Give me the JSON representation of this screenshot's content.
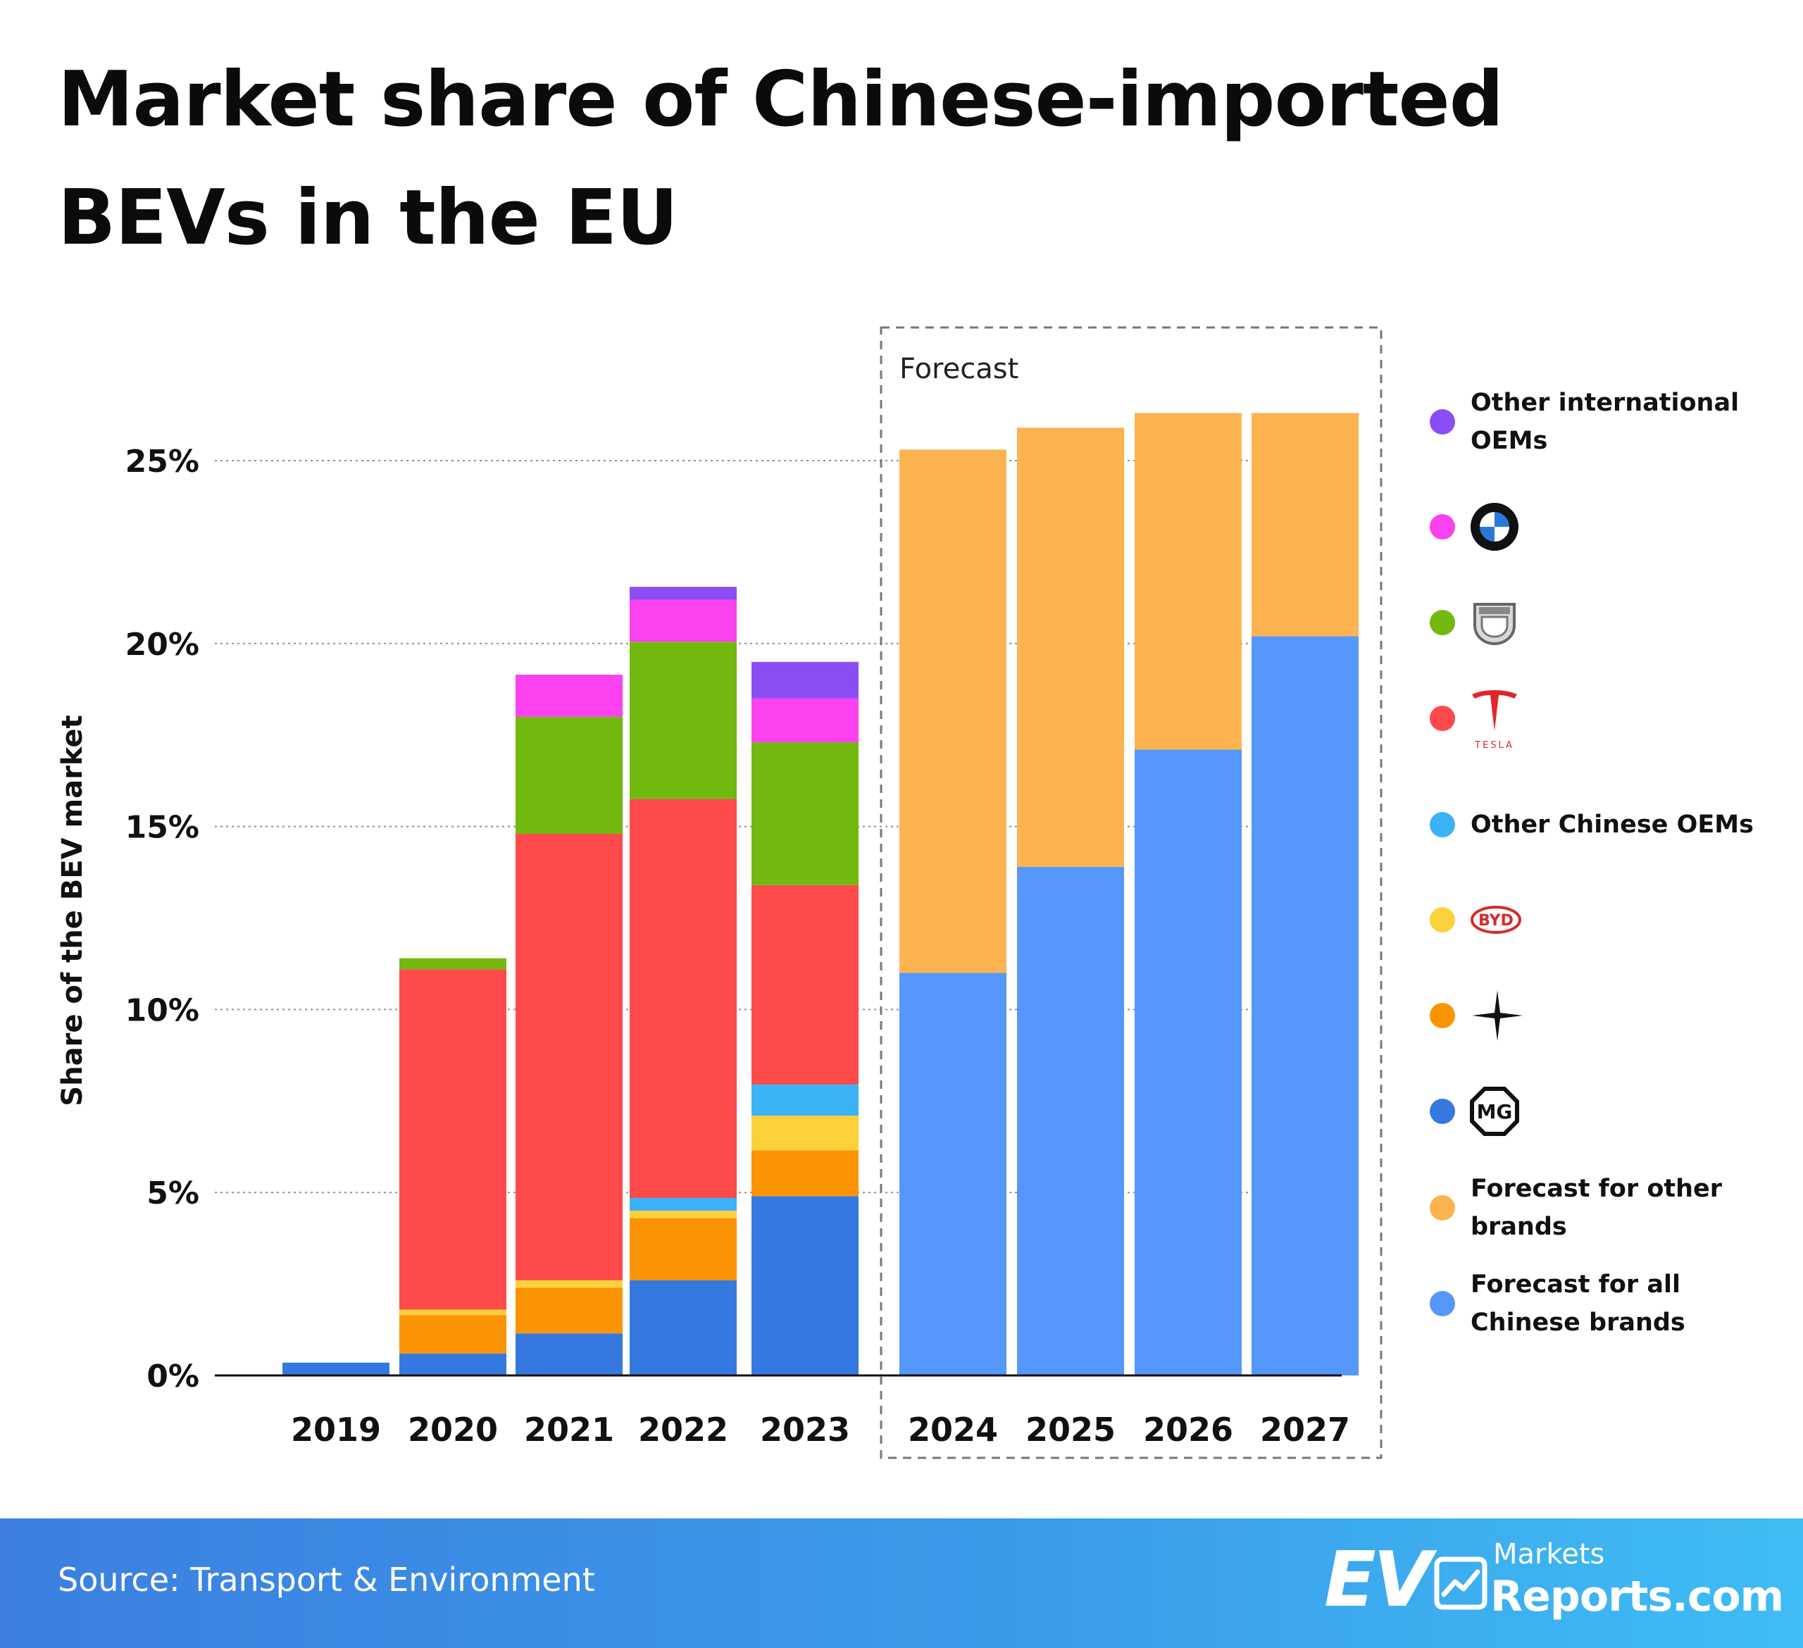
{
  "title": "Market share of Chinese-imported BEVs in the EU",
  "source": "Source: Transport & Environment",
  "brand": {
    "ev": "EV",
    "markets": "Markets",
    "reports": "Reports.com"
  },
  "chart_data": {
    "type": "bar",
    "stacked": true,
    "title": "Market share of Chinese-imported BEVs in the EU",
    "ylabel": "Share of the BEV market",
    "xlabel": "",
    "ylim": [
      0,
      25
    ],
    "yticks": [
      0,
      5,
      10,
      15,
      20,
      25
    ],
    "ytick_labels": [
      "0%",
      "5%",
      "10%",
      "15%",
      "20%",
      "25%"
    ],
    "grid": "horizontal dotted",
    "legend_position": "right",
    "categories": [
      "2019",
      "2020",
      "2021",
      "2022",
      "2023",
      "2024",
      "2025",
      "2026",
      "2027"
    ],
    "forecast_label": "Forecast",
    "forecast_categories": [
      "2024",
      "2025",
      "2026",
      "2027"
    ],
    "series": [
      {
        "name": "MG",
        "color": "#3579e0",
        "values": [
          0.35,
          0.6,
          1.15,
          2.6,
          4.9,
          0,
          0,
          0,
          0
        ]
      },
      {
        "name": "Polestar",
        "color": "#fb9404",
        "values": [
          0,
          1.05,
          1.25,
          1.7,
          1.25,
          0,
          0,
          0,
          0
        ]
      },
      {
        "name": "BYD",
        "color": "#fdd13c",
        "values": [
          0,
          0.15,
          0.2,
          0.2,
          0.95,
          0,
          0,
          0,
          0
        ]
      },
      {
        "name": "Other Chinese OEMs",
        "color": "#3bb2f6",
        "values": [
          0,
          0,
          0,
          0.35,
          0.85,
          0,
          0,
          0,
          0
        ]
      },
      {
        "name": "Tesla",
        "color": "#fe4a4b",
        "values": [
          0,
          9.3,
          12.2,
          10.9,
          5.45,
          0,
          0,
          0,
          0
        ]
      },
      {
        "name": "Dacia",
        "color": "#71b90f",
        "values": [
          0,
          0.3,
          3.2,
          4.3,
          3.9,
          0,
          0,
          0,
          0
        ]
      },
      {
        "name": "BMW",
        "color": "#fc41ee",
        "values": [
          0,
          0,
          1.15,
          1.15,
          1.2,
          0,
          0,
          0,
          0
        ]
      },
      {
        "name": "Other international OEMs",
        "color": "#8b4ef5",
        "values": [
          0,
          0,
          0,
          0.35,
          1.0,
          0,
          0,
          0,
          0
        ]
      },
      {
        "name": "Forecast for all Chinese brands",
        "color": "#5597fa",
        "values": [
          0,
          0,
          0,
          0,
          0,
          11.0,
          13.9,
          17.1,
          20.2
        ]
      },
      {
        "name": "Forecast for other brands",
        "color": "#fdb350",
        "values": [
          0,
          0,
          0,
          0,
          0,
          14.3,
          12.0,
          9.2,
          6.1
        ]
      }
    ]
  },
  "legend": [
    {
      "kind": "text",
      "label": "Other international OEMs",
      "color": "#8b4ef5"
    },
    {
      "kind": "logo",
      "icon": "bmw-logo-icon",
      "color": "#fc41ee"
    },
    {
      "kind": "logo",
      "icon": "dacia-logo-icon",
      "color": "#71b90f"
    },
    {
      "kind": "logo",
      "icon": "tesla-logo-icon",
      "color": "#fe4a4b",
      "logo_text": "TESLA"
    },
    {
      "kind": "text",
      "label": "Other Chinese OEMs",
      "color": "#3bb2f6"
    },
    {
      "kind": "logo",
      "icon": "byd-logo-icon",
      "color": "#fdd13c",
      "logo_text": "BYD"
    },
    {
      "kind": "logo",
      "icon": "polestar-logo-icon",
      "color": "#fb9404"
    },
    {
      "kind": "logo",
      "icon": "mg-logo-icon",
      "color": "#3579e0",
      "logo_text": "MG"
    },
    {
      "kind": "text",
      "label": "Forecast for other brands",
      "color": "#fdb350"
    },
    {
      "kind": "text",
      "label": "Forecast for all Chinese brands",
      "color": "#5597fa"
    }
  ]
}
